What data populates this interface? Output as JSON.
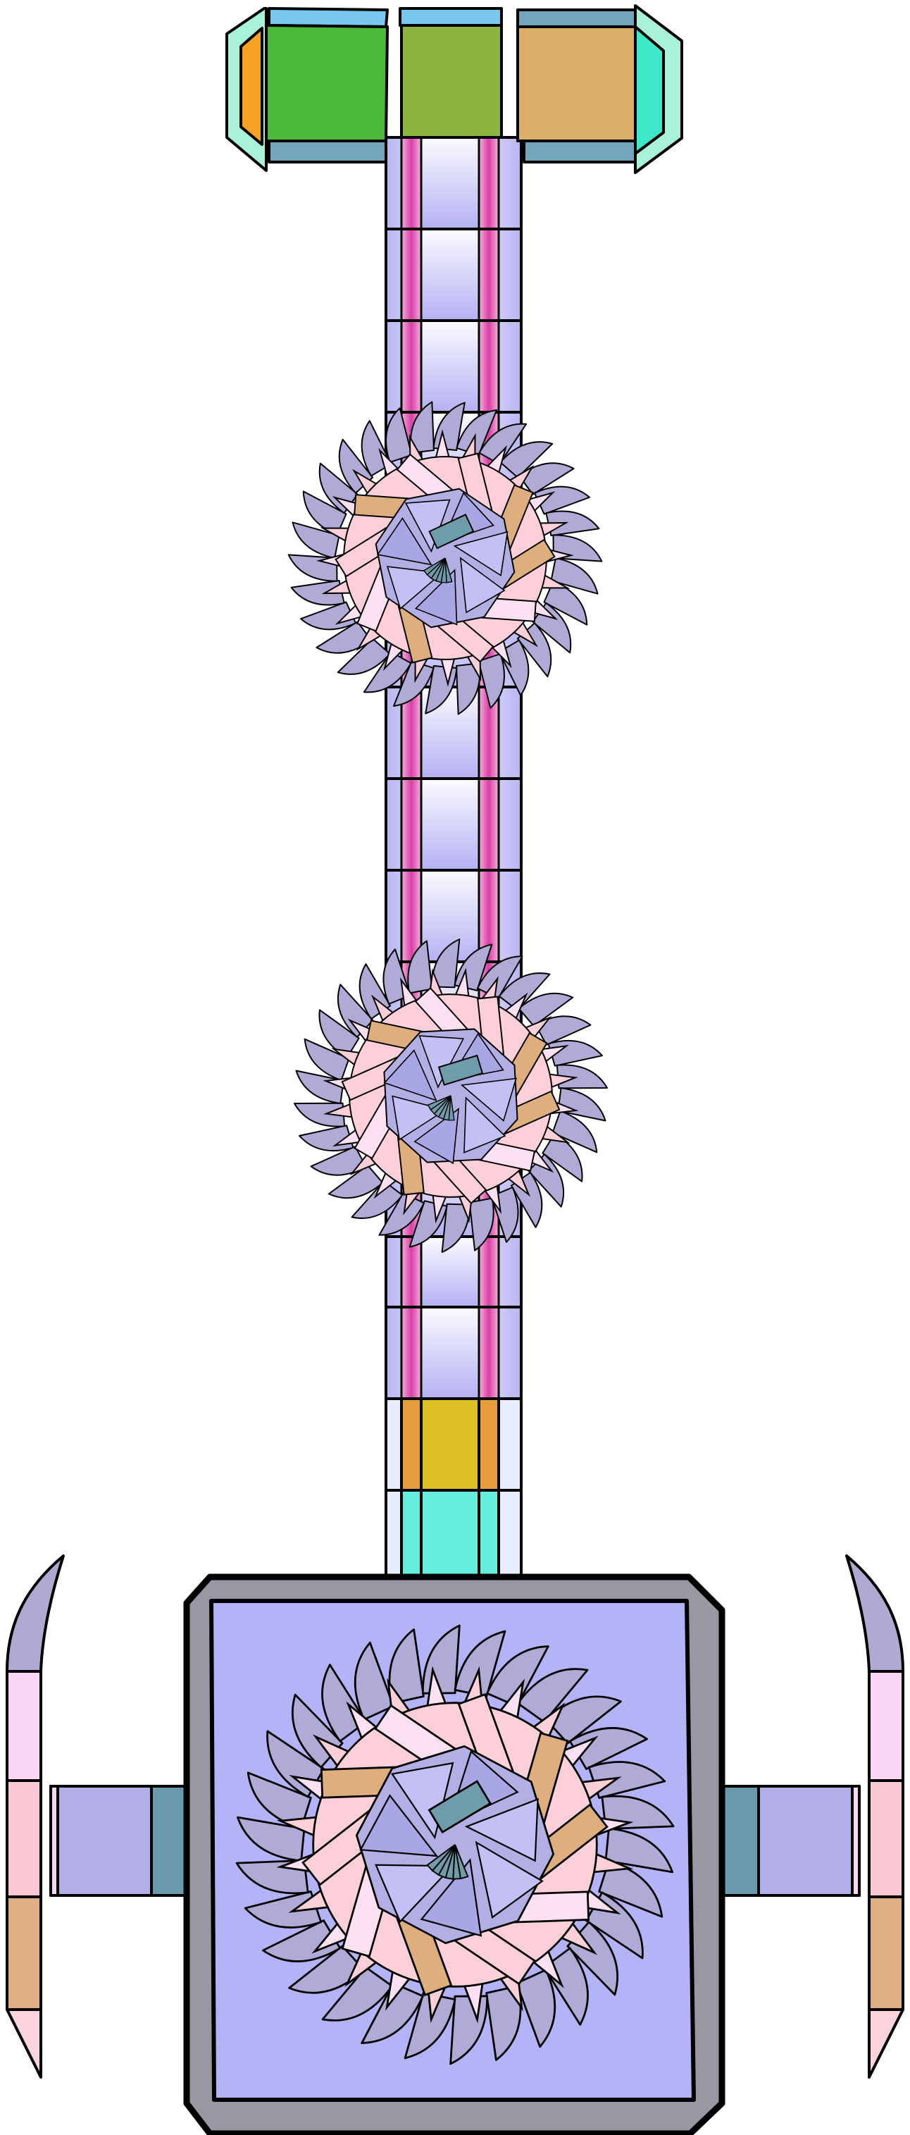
{
  "colors": {
    "outline": "#000000",
    "shaft_light": "#eeeeff",
    "shaft_mid": "#b9b6f2",
    "shaft_stripe": "#e262b8",
    "head_green": "#4cb93a",
    "head_olive": "#8bb53c",
    "head_tan": "#dcaf69",
    "head_orange": "#f5a223",
    "head_teal": "#3de8c8",
    "head_mint": "#a9f2d8",
    "head_sky": "#79c8ef",
    "head_steel": "#73a6bd",
    "band_orange": "#e89d3d",
    "band_yellow": "#ddc024",
    "band_aqua": "#66eedd",
    "box_frame": "#9a96a4",
    "box_inner": "#b5b3f7",
    "arm_lavender": "#b2aee8",
    "arm_steel": "#6a9aae",
    "prong_pink": "#fbd6f4",
    "prong_rose": "#fac7d4",
    "prong_tan": "#dfae84",
    "prong_blush": "#fdd3dd",
    "prong_tip": "#b0a9d2",
    "saw_blade": "#b0aad6",
    "saw_pink": "#fccfd9",
    "saw_light": "#fde0f1",
    "saw_tan": "#deae7e",
    "saw_core": "#b3afe4",
    "saw_hub": "#6f9cab"
  },
  "icons": [
    "hammer-head",
    "shaft",
    "sawblade-ornament",
    "sawblade-ornament",
    "sawblade-emblem",
    "side-prong",
    "side-prong"
  ],
  "labels": {}
}
